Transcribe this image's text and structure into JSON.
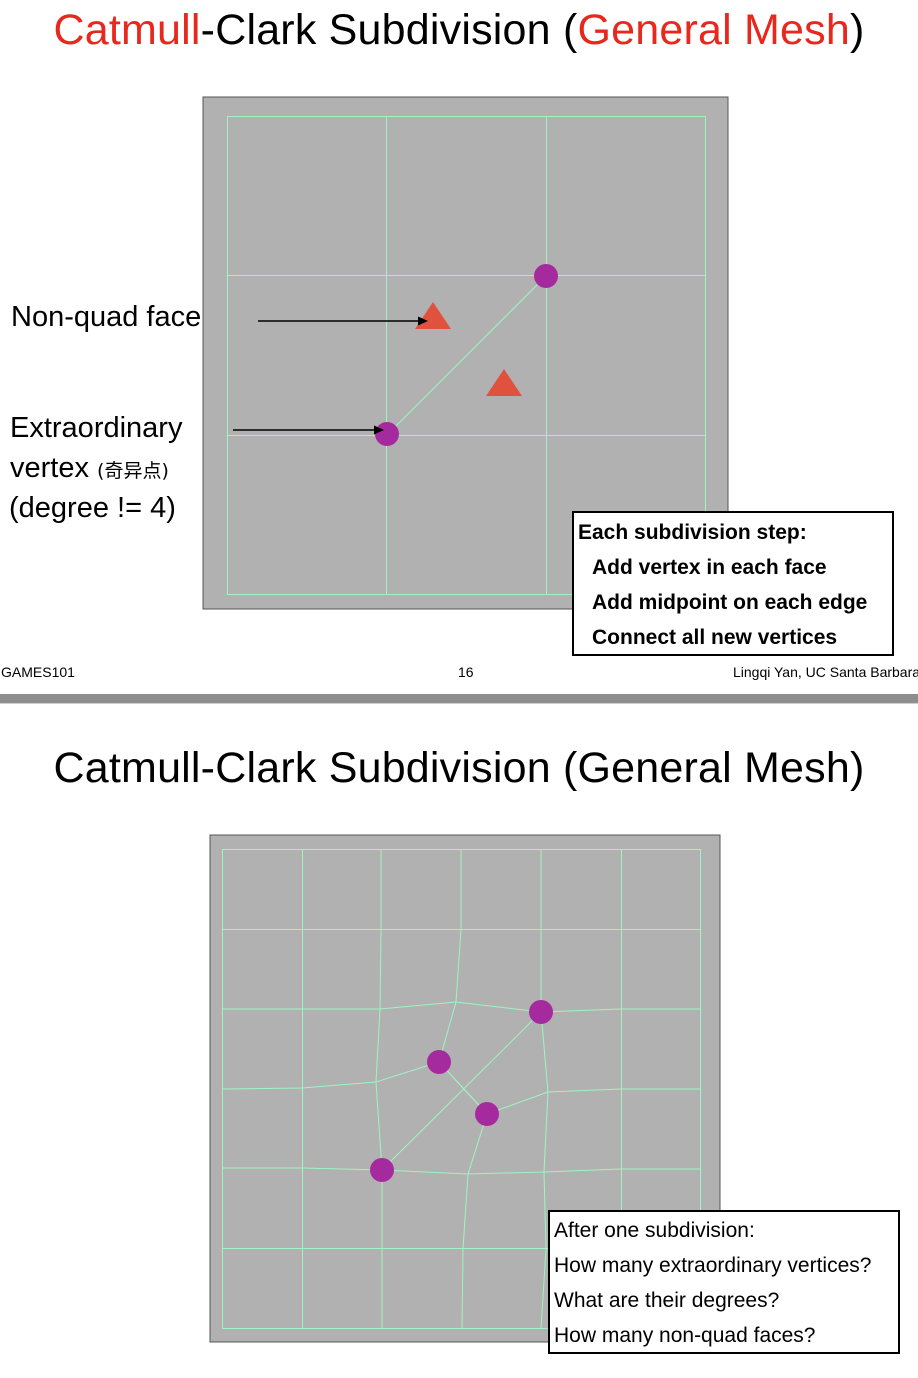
{
  "slide1": {
    "title_parts": [
      {
        "text": "Catmull",
        "color": "#e8271d"
      },
      {
        "text": "-Clark Subdivision (",
        "color": "#000000"
      },
      {
        "text": "General Mesh",
        "color": "#e8271d"
      },
      {
        "text": ")",
        "color": "#000000"
      }
    ],
    "label_nonquad": "Non-quad face",
    "label_extra_1": "Extraordinary",
    "label_extra_2": "vertex",
    "label_extra_2_cn": "(奇异点)",
    "label_extra_3": "(degree != 4)",
    "box_lines": [
      "Each subdivision step:",
      "Add vertex in each face",
      "Add midpoint on each edge",
      "Connect all new vertices"
    ],
    "footer_left": "GAMES101",
    "footer_center": "16",
    "footer_right": "Lingqi Yan, UC Santa Barbara"
  },
  "slide2": {
    "title": "Catmull-Clark Subdivision (General Mesh)",
    "box_lines": [
      "After one subdivision:",
      "How many extraordinary vertices?",
      "What are their degrees?",
      "How many non-quad faces?"
    ]
  },
  "colors": {
    "accent_red": "#e8271d",
    "mesh_background": "#b1b1b1",
    "mesh_edge": "#9ef5c0",
    "vertex": "#a52a9e",
    "face_marker": "#e0523e"
  }
}
